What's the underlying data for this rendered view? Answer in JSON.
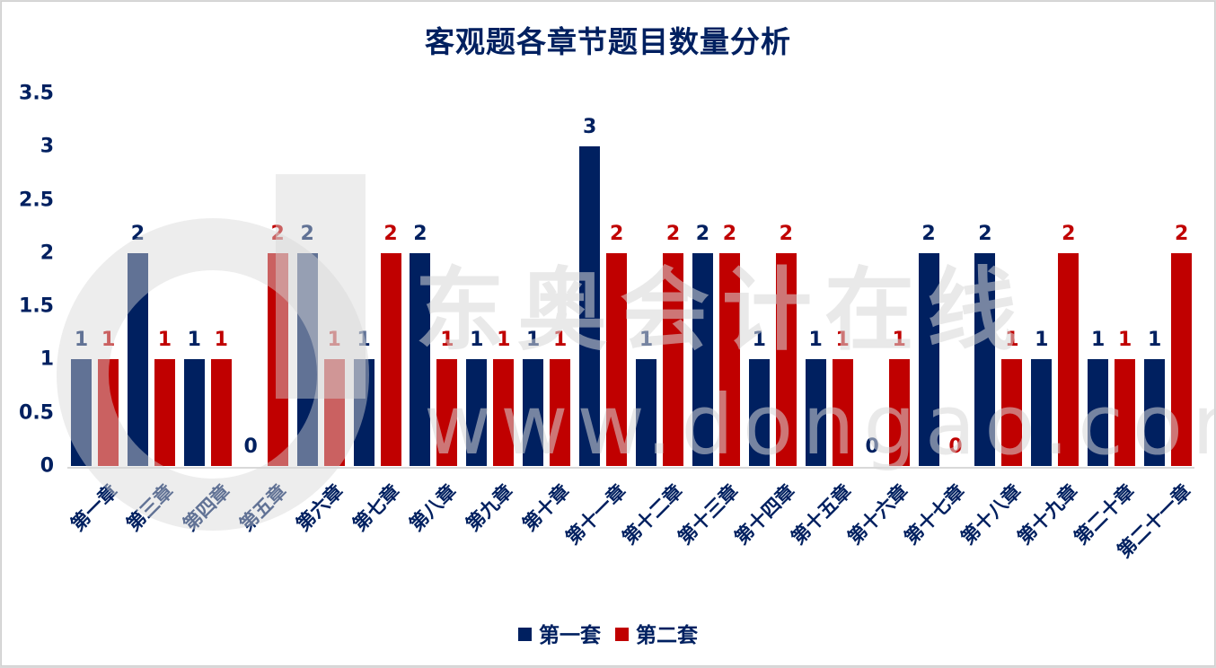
{
  "chart_data": {
    "type": "bar",
    "title": "客观题各章节题目数量分析",
    "xlabel": "",
    "ylabel": "",
    "ylim": [
      0,
      3.5
    ],
    "yticks": [
      "0",
      "0.5",
      "1",
      "1.5",
      "2",
      "2.5",
      "3",
      "3.5"
    ],
    "grid": false,
    "legend_position": "bottom",
    "categories": [
      "第一章",
      "第三章",
      "第四章",
      "第五章",
      "第六章",
      "第七章",
      "第八章",
      "第九章",
      "第十章",
      "第十一章",
      "第十二章",
      "第十三章",
      "第十四章",
      "第十五章",
      "第十六章",
      "第十七章",
      "第十八章",
      "第十九章",
      "第二十章",
      "第二十一章"
    ],
    "series": [
      {
        "name": "第一套",
        "color": "#002060",
        "values": [
          1,
          2,
          1,
          0,
          2,
          1,
          2,
          1,
          1,
          3,
          1,
          2,
          1,
          1,
          0,
          2,
          2,
          1,
          1,
          1
        ]
      },
      {
        "name": "第二套",
        "color": "#c00000",
        "values": [
          1,
          1,
          1,
          2,
          1,
          2,
          1,
          1,
          1,
          2,
          2,
          2,
          2,
          1,
          1,
          0,
          1,
          2,
          1,
          2
        ]
      }
    ]
  },
  "watermark": {
    "brand": "东奥会计在线",
    "url": "www.dongao.com"
  }
}
